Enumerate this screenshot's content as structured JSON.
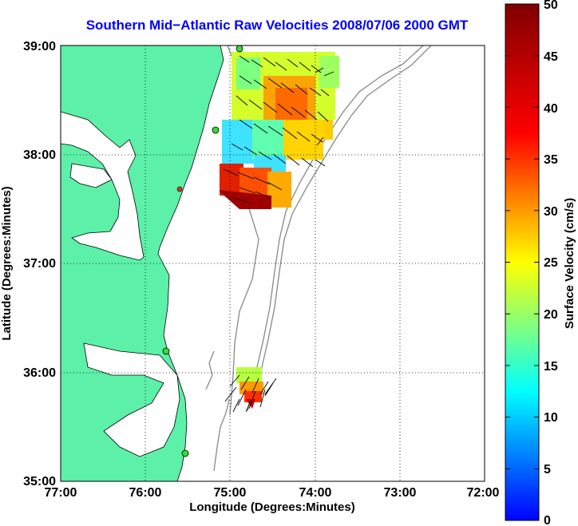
{
  "title": "Southern Mid−Atlantic Raw Velocities 2008/07/06 2000 GMT",
  "map": {
    "xlabel": "Longitude (Degrees:Minutes)",
    "ylabel": "Latitude (Degrees:Minutes)",
    "x_ticks": [
      "77:00",
      "76:00",
      "75:00",
      "74:00",
      "73:00",
      "72:00"
    ],
    "y_ticks": [
      "39:00",
      "38:00",
      "37:00",
      "36:00",
      "35:00"
    ],
    "land_color": "#5cf0a8",
    "contour_color": "#888888",
    "station_color": "#33dd33",
    "grid": true
  },
  "colorbar": {
    "label": "Surface Velocity (cm/s)",
    "ticks": [
      "50",
      "45",
      "40",
      "35",
      "30",
      "25",
      "20",
      "15",
      "10",
      "5",
      "0"
    ],
    "range": [
      0,
      50
    ]
  }
}
